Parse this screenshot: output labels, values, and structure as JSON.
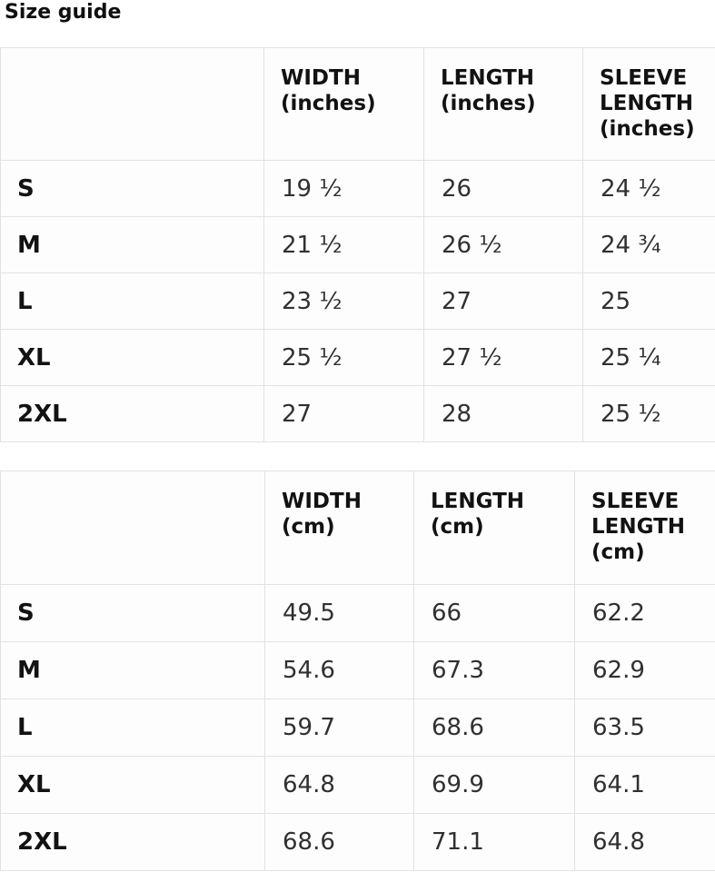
{
  "page": {
    "title": "Size guide"
  },
  "inches_table": {
    "col_headers": {
      "size": "",
      "width": [
        "WIDTH",
        "(inches)"
      ],
      "length": [
        "LENGTH",
        "(inches)"
      ],
      "sleeve": [
        "SLEEVE",
        "LENGTH",
        "(inches)"
      ]
    },
    "rows": [
      {
        "size": "S",
        "width": "19 ½",
        "length": "26",
        "sleeve": "24 ½"
      },
      {
        "size": "M",
        "width": "21 ½",
        "length": "26 ½",
        "sleeve": "24 ¾"
      },
      {
        "size": "L",
        "width": "23 ½",
        "length": "27",
        "sleeve": "25"
      },
      {
        "size": "XL",
        "width": "25 ½",
        "length": "27 ½",
        "sleeve": "25 ¼"
      },
      {
        "size": "2XL",
        "width": "27",
        "length": "28",
        "sleeve": "25 ½"
      }
    ]
  },
  "cm_table": {
    "col_headers": {
      "size": "",
      "width": [
        "WIDTH",
        "(cm)"
      ],
      "length": [
        "LENGTH",
        "(cm)"
      ],
      "sleeve": [
        "SLEEVE",
        "LENGTH",
        "(cm)"
      ]
    },
    "rows": [
      {
        "size": "S",
        "width": "49.5",
        "length": "66",
        "sleeve": "62.2"
      },
      {
        "size": "M",
        "width": "54.6",
        "length": "67.3",
        "sleeve": "62.9"
      },
      {
        "size": "L",
        "width": "59.7",
        "length": "68.6",
        "sleeve": "63.5"
      },
      {
        "size": "XL",
        "width": "64.8",
        "length": "69.9",
        "sleeve": "64.1"
      },
      {
        "size": "2XL",
        "width": "68.6",
        "length": "71.1",
        "sleeve": "64.8"
      }
    ]
  },
  "colors": {
    "border": "#e2e2e2",
    "text": "#1e1e1e",
    "background": "#ffffff"
  }
}
